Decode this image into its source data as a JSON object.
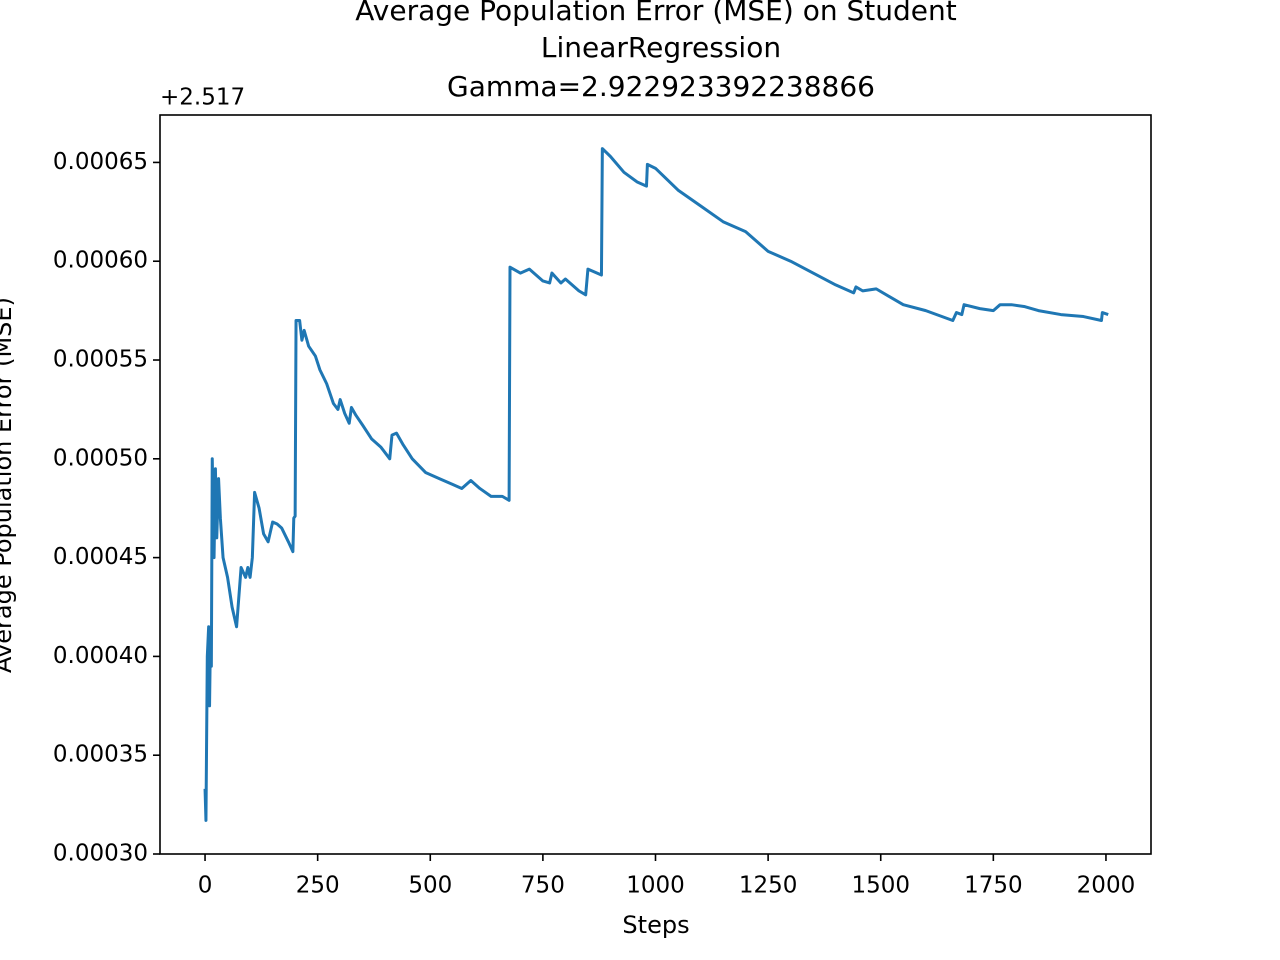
{
  "chart_data": {
    "type": "line",
    "title": [
      "Average Population Error (MSE) on Student",
      "LinearRegression",
      "Gamma=2.922923392238866"
    ],
    "x_label": "Steps",
    "y_label": "Average Population Error (MSE)",
    "y_offset_label": "+2.517",
    "xlim": [
      -100,
      2100
    ],
    "xticks": [
      0,
      250,
      500,
      750,
      1000,
      1250,
      1500,
      1750,
      2000
    ],
    "ylim": [
      0.0003,
      0.000674
    ],
    "yticks": [
      {
        "value": 0.0003,
        "label": "0.00030"
      },
      0.00035,
      {
        "value": 0.0004,
        "label": "0.00040"
      },
      0.00045,
      {
        "value": 0.0005,
        "label": "0.00050"
      },
      0.00055,
      {
        "value": 0.0006,
        "label": "0.00060"
      },
      0.00065
    ],
    "x": [
      0,
      2,
      5,
      8,
      10,
      12,
      14,
      16,
      20,
      23,
      26,
      30,
      34,
      40,
      50,
      60,
      70,
      75,
      80,
      90,
      95,
      100,
      105,
      110,
      120,
      130,
      140,
      150,
      160,
      170,
      185,
      195,
      197,
      200,
      202,
      210,
      215,
      220,
      230,
      245,
      255,
      270,
      285,
      295,
      300,
      310,
      320,
      325,
      335,
      350,
      370,
      390,
      410,
      415,
      425,
      440,
      460,
      490,
      520,
      550,
      570,
      590,
      610,
      635,
      660,
      675,
      677,
      700,
      720,
      750,
      765,
      770,
      790,
      800,
      830,
      845,
      850,
      880,
      882,
      900,
      930,
      960,
      980,
      982,
      1000,
      1050,
      1100,
      1150,
      1200,
      1250,
      1300,
      1350,
      1400,
      1440,
      1445,
      1460,
      1490,
      1520,
      1550,
      1600,
      1660,
      1668,
      1680,
      1685,
      1720,
      1750,
      1765,
      1790,
      1820,
      1850,
      1900,
      1950,
      1990,
      1992,
      2005
    ],
    "series": [
      {
        "color": "#1f77b4",
        "values": [
          0.000333,
          0.000317,
          0.0004,
          0.000415,
          0.000375,
          0.00041,
          0.000395,
          0.0005,
          0.00045,
          0.000495,
          0.00046,
          0.00049,
          0.00047,
          0.00045,
          0.00044,
          0.000425,
          0.000415,
          0.00043,
          0.000445,
          0.00044,
          0.000445,
          0.00044,
          0.00045,
          0.000483,
          0.000475,
          0.000462,
          0.000458,
          0.000468,
          0.000467,
          0.000465,
          0.000458,
          0.000453,
          0.00047,
          0.000471,
          0.00057,
          0.00057,
          0.00056,
          0.000565,
          0.000557,
          0.000552,
          0.000545,
          0.000538,
          0.000528,
          0.000525,
          0.00053,
          0.000523,
          0.000518,
          0.000526,
          0.000522,
          0.000517,
          0.00051,
          0.000506,
          0.0005,
          0.000512,
          0.000513,
          0.000507,
          0.0005,
          0.000493,
          0.00049,
          0.000487,
          0.000485,
          0.000489,
          0.000485,
          0.000481,
          0.000481,
          0.000479,
          0.000597,
          0.000594,
          0.000596,
          0.00059,
          0.000589,
          0.000594,
          0.000589,
          0.000591,
          0.000585,
          0.000583,
          0.000596,
          0.000593,
          0.000657,
          0.000653,
          0.000645,
          0.00064,
          0.000638,
          0.000649,
          0.000647,
          0.000636,
          0.000628,
          0.00062,
          0.000615,
          0.000605,
          0.0006,
          0.000594,
          0.000588,
          0.000584,
          0.000587,
          0.000585,
          0.000586,
          0.000582,
          0.000578,
          0.000575,
          0.00057,
          0.000574,
          0.000573,
          0.000578,
          0.000576,
          0.000575,
          0.000578,
          0.000578,
          0.000577,
          0.000575,
          0.000573,
          0.000572,
          0.00057,
          0.000574,
          0.000573
        ]
      }
    ]
  }
}
